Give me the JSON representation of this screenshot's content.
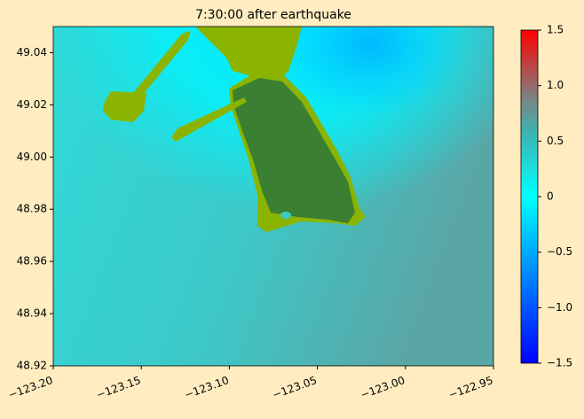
{
  "chart_data": {
    "type": "heatmap",
    "title": "7:30:00 after earthquake",
    "xlim": [
      -123.2,
      -122.95
    ],
    "xticks": [
      {
        "value": -123.2,
        "label": "−123.20"
      },
      {
        "value": -123.15,
        "label": "−123.15"
      },
      {
        "value": -123.1,
        "label": "−123.10"
      },
      {
        "value": -123.05,
        "label": "−123.05"
      },
      {
        "value": -123.0,
        "label": "−123.00"
      },
      {
        "value": -122.95,
        "label": "−122.95"
      }
    ],
    "ylim": [
      48.92,
      49.05
    ],
    "yticks": [
      48.92,
      48.94,
      48.96,
      48.98,
      {
        "value": 49.0,
        "label": "49.00"
      },
      49.02,
      49.04
    ],
    "colorbar": {
      "lim": [
        -1.5,
        1.5
      ],
      "ticks": [
        {
          "value": -1.5,
          "label": "−1.5"
        },
        {
          "value": -1.0,
          "label": "−1.0"
        },
        {
          "value": -0.5,
          "label": "−0.5"
        },
        0.0,
        0.5,
        {
          "value": 1.0,
          "label": "1.0"
        },
        1.5
      ]
    }
  }
}
